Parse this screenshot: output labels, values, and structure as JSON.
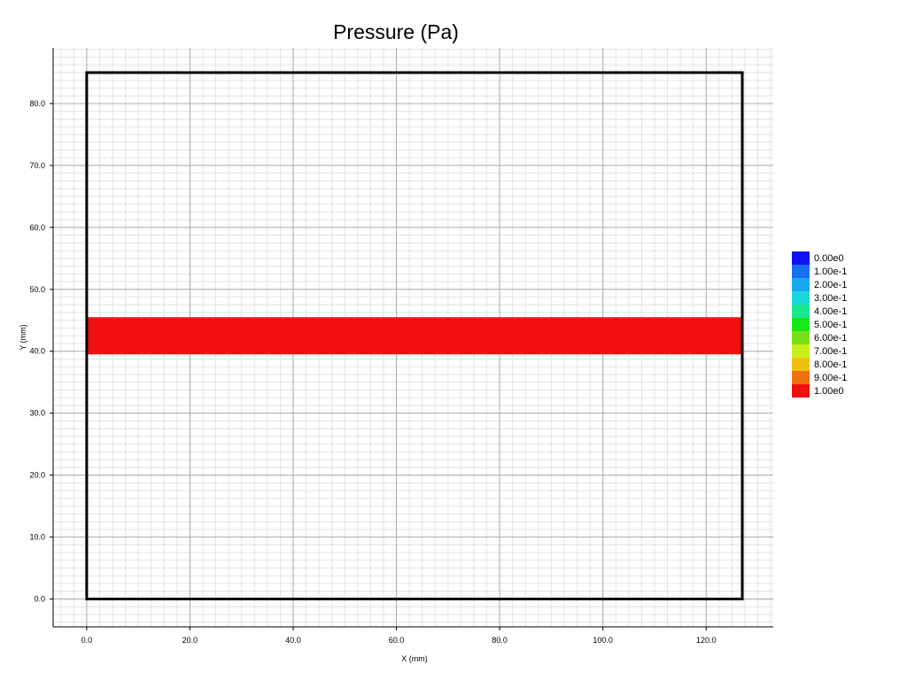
{
  "chart_data": {
    "type": "heatmap",
    "title": "Pressure (Pa)",
    "xlabel": "X (mm)",
    "ylabel": "Y (mm)",
    "xlim": [
      -6.5,
      133
    ],
    "ylim": [
      -4.5,
      89
    ],
    "grid": true,
    "minor_grid": true,
    "x_ticks": [
      0,
      20,
      40,
      60,
      80,
      100,
      120
    ],
    "x_tick_labels": [
      "0.0",
      "20.0",
      "40.0",
      "60.0",
      "80.0",
      "100.0",
      "120.0"
    ],
    "y_ticks": [
      0,
      10,
      20,
      30,
      40,
      50,
      60,
      70,
      80
    ],
    "y_tick_labels": [
      "0.0",
      "10.0",
      "20.0",
      "30.0",
      "40.0",
      "50.0",
      "60.0",
      "70.0",
      "80.0"
    ],
    "domain_outline": {
      "x": [
        0,
        127
      ],
      "y": [
        0,
        85
      ],
      "color": "#000000"
    },
    "regions": [
      {
        "x": [
          0,
          127
        ],
        "y": [
          39.5,
          45.5
        ],
        "value": 1.0,
        "color": "#f01010"
      }
    ],
    "legend": {
      "position": "right",
      "entries": [
        {
          "label": "0.00e0",
          "color": "#1010f0"
        },
        {
          "label": "1.00e-1",
          "color": "#1870f0"
        },
        {
          "label": "2.00e-1",
          "color": "#18a8f0"
        },
        {
          "label": "3.00e-1",
          "color": "#18d8d8"
        },
        {
          "label": "4.00e-1",
          "color": "#18e890"
        },
        {
          "label": "5.00e-1",
          "color": "#18e818"
        },
        {
          "label": "6.00e-1",
          "color": "#78e018"
        },
        {
          "label": "7.00e-1",
          "color": "#c8f018"
        },
        {
          "label": "8.00e-1",
          "color": "#f0c010"
        },
        {
          "label": "9.00e-1",
          "color": "#f07010"
        },
        {
          "label": "1.00e0",
          "color": "#f01010"
        }
      ]
    }
  }
}
